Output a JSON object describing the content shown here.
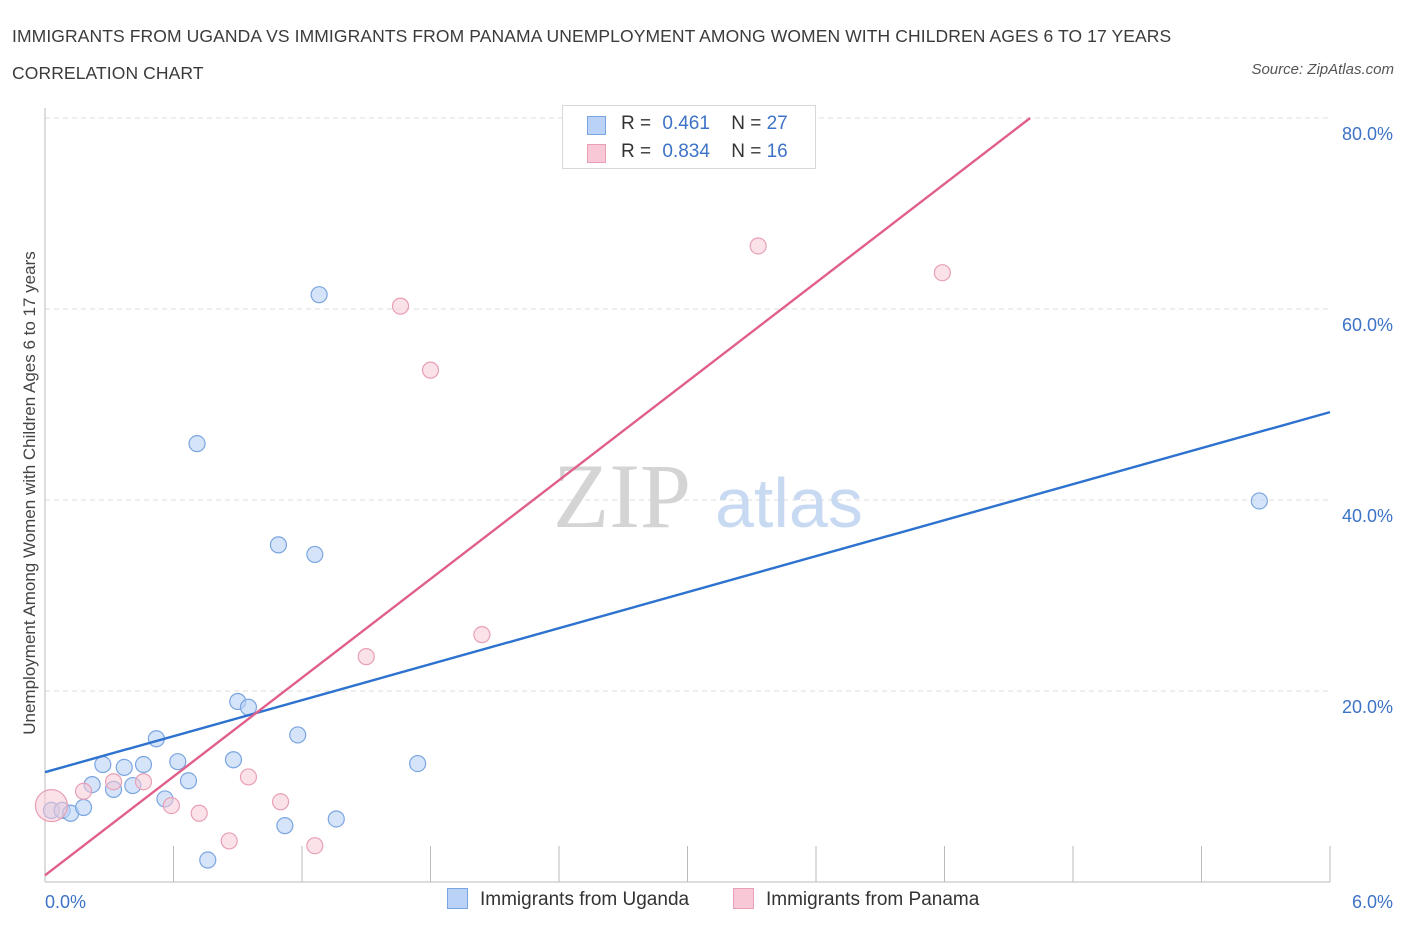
{
  "title": "IMMIGRANTS FROM UGANDA VS IMMIGRANTS FROM PANAMA UNEMPLOYMENT AMONG WOMEN WITH CHILDREN AGES 6 TO 17 YEARS CORRELATION CHART",
  "source": "Source: ZipAtlas.com",
  "watermark": {
    "zip": "ZIP",
    "atlas": "atlas"
  },
  "legend": {
    "rows": [
      {
        "r_label": "R =",
        "r_value": "0.461",
        "n_label": "N =",
        "n_value": "27"
      },
      {
        "r_label": "R =",
        "r_value": "0.834",
        "n_label": "N =",
        "n_value": "16"
      }
    ]
  },
  "colors": {
    "uganda_fill": "#b9d2f5",
    "uganda_stroke": "#7aa5e0",
    "uganda_line": "#2e72cf",
    "panama_fill": "#f8c8d6",
    "panama_stroke": "#e8a0b6",
    "panama_line": "#e0608a",
    "accent_text": "#3d73c7",
    "grid": "#dddddd"
  },
  "chart_data": {
    "type": "scatter",
    "title": "IMMIGRANTS FROM UGANDA VS IMMIGRANTS FROM PANAMA UNEMPLOYMENT AMONG WOMEN WITH CHILDREN AGES 6 TO 17 YEARS CORRELATION CHART",
    "xlabel": "",
    "ylabel": "Unemployment Among Women with Children Ages 6 to 17 years",
    "xlim": [
      0,
      6
    ],
    "ylim": [
      0,
      80
    ],
    "x_tick_labels": [
      "0.0%",
      "6.0%"
    ],
    "y_tick_labels": [
      "20.0%",
      "40.0%",
      "60.0%",
      "80.0%"
    ],
    "y_ticks": [
      20,
      40,
      60,
      80
    ],
    "grid": true,
    "series": [
      {
        "name": "Immigrants from Uganda",
        "r": 0.461,
        "n": 27,
        "trend": [
          [
            0,
            11.5
          ],
          [
            6,
            49.2
          ]
        ],
        "points": [
          [
            0.03,
            7.5
          ],
          [
            0.08,
            7.5
          ],
          [
            0.12,
            7.2
          ],
          [
            0.18,
            7.8
          ],
          [
            0.22,
            10.2
          ],
          [
            0.27,
            12.3
          ],
          [
            0.32,
            9.7
          ],
          [
            0.37,
            12.0
          ],
          [
            0.41,
            10.1
          ],
          [
            0.46,
            12.3
          ],
          [
            0.52,
            15.0
          ],
          [
            0.56,
            8.7
          ],
          [
            0.62,
            12.6
          ],
          [
            0.67,
            10.6
          ],
          [
            0.71,
            45.9
          ],
          [
            0.76,
            2.3
          ],
          [
            0.88,
            12.8
          ],
          [
            0.9,
            18.9
          ],
          [
            0.95,
            18.3
          ],
          [
            1.09,
            35.3
          ],
          [
            1.12,
            5.9
          ],
          [
            1.18,
            15.4
          ],
          [
            1.26,
            34.3
          ],
          [
            1.28,
            61.5
          ],
          [
            1.36,
            6.6
          ],
          [
            1.74,
            12.4
          ],
          [
            5.67,
            39.9
          ]
        ]
      },
      {
        "name": "Immigrants from Panama",
        "r": 0.834,
        "n": 16,
        "trend": [
          [
            0,
            0.7
          ],
          [
            4.6,
            80
          ]
        ],
        "points": [
          [
            0.03,
            8.0
          ],
          [
            0.18,
            9.5
          ],
          [
            0.32,
            10.5
          ],
          [
            0.46,
            10.5
          ],
          [
            0.59,
            8.0
          ],
          [
            0.72,
            7.2
          ],
          [
            0.86,
            4.3
          ],
          [
            0.95,
            11.0
          ],
          [
            1.1,
            8.4
          ],
          [
            1.26,
            3.8
          ],
          [
            1.5,
            23.6
          ],
          [
            1.66,
            60.3
          ],
          [
            1.8,
            53.6
          ],
          [
            2.04,
            25.9
          ],
          [
            3.33,
            66.6
          ],
          [
            4.19,
            63.8
          ]
        ]
      }
    ]
  },
  "bottom_legend": {
    "uganda_label": "Immigrants from Uganda",
    "panama_label": "Immigrants from Panama"
  }
}
